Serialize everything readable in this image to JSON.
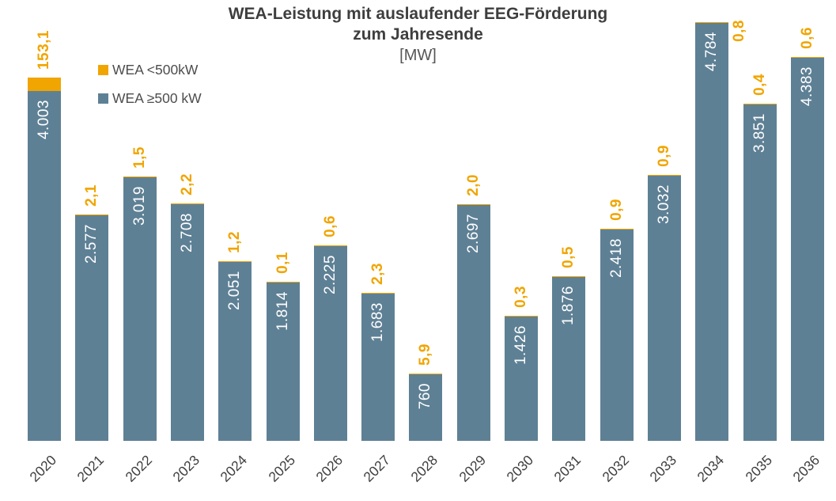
{
  "title": {
    "line1": "WEA-Leistung mit auslaufender EEG-Förderung",
    "line2": "zum Jahresende",
    "unit": "[MW]"
  },
  "legend": {
    "items": [
      {
        "label": "WEA <500kW",
        "color": "#F0A500"
      },
      {
        "label": "WEA ≥500 kW",
        "color": "#5E8095"
      }
    ]
  },
  "colors": {
    "small_wea": "#F0A500",
    "large_wea": "#5E8095",
    "title_text": "#3E3E3E",
    "axis_text": "#3F3F3F",
    "inside_label": "#FFFFFF"
  },
  "chart_data": {
    "type": "bar",
    "stacked": true,
    "title": "WEA-Leistung mit auslaufender EEG-Förderung zum Jahresende",
    "ylabel": "[MW]",
    "xlabel": "",
    "grid": false,
    "legend_position": "top-left",
    "ylim": [
      0,
      5000
    ],
    "categories": [
      "2020",
      "2021",
      "2022",
      "2023",
      "2024",
      "2025",
      "2026",
      "2027",
      "2028",
      "2029",
      "2030",
      "2031",
      "2032",
      "2033",
      "2034",
      "2035",
      "2036"
    ],
    "series": [
      {
        "name": "WEA <500kW",
        "color": "#F0A500",
        "values": [
          153.1,
          2.1,
          1.5,
          2.2,
          1.2,
          0.1,
          0.6,
          2.3,
          5.9,
          2.0,
          0.3,
          0.5,
          0.9,
          0.9,
          0.8,
          0.4,
          0.6
        ],
        "labels": [
          "153,1",
          "2,1",
          "1,5",
          "2,2",
          "1,2",
          "0,1",
          "0,6",
          "2,3",
          "5,9",
          "2,0",
          "0,3",
          "0,5",
          "0,9",
          "0,9",
          "0,8",
          "0,4",
          "0,6"
        ]
      },
      {
        "name": "WEA ≥500 kW",
        "color": "#5E8095",
        "values": [
          4003,
          2577,
          3019,
          2708,
          2051,
          1814,
          2225,
          1683,
          760,
          2697,
          1426,
          1876,
          2418,
          3032,
          4784,
          3851,
          4383
        ],
        "labels": [
          "4.003",
          "2.577",
          "3.019",
          "2.708",
          "2.051",
          "1.814",
          "2.225",
          "1.683",
          "760",
          "2.697",
          "1.426",
          "1.876",
          "2.418",
          "3.032",
          "4.784",
          "3.851",
          "4.383"
        ]
      }
    ]
  }
}
